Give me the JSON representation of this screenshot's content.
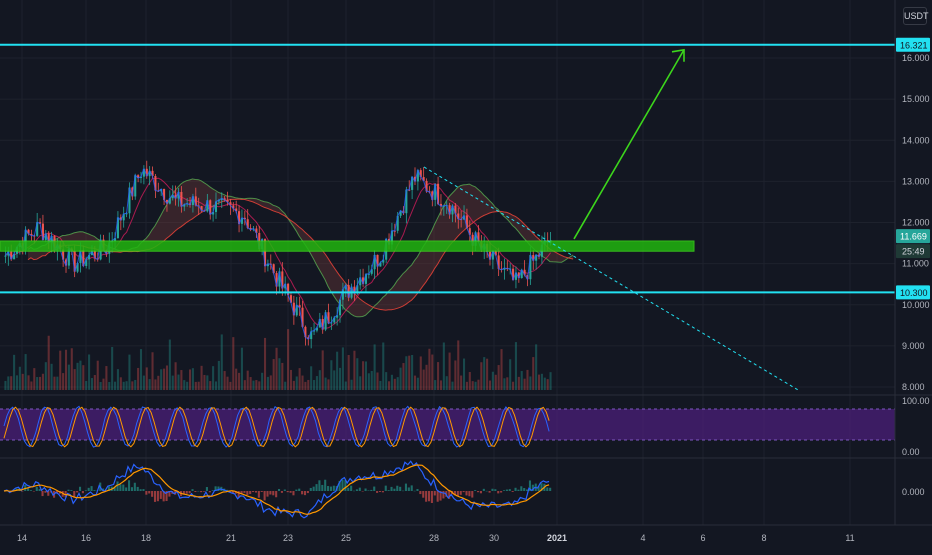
{
  "currency_label": "USDT",
  "colors": {
    "background": "#131722",
    "grid": "#1e222d",
    "up": "#26a69a",
    "down": "#ef5350",
    "support_line": "#22e1f2",
    "target_arrow": "#3cd61c",
    "zone": "#21b50f",
    "rsi_band": "#4b1f7a",
    "macd": "#2962ff",
    "signal": "#ff9800"
  },
  "price_axis": {
    "ticks": [
      "16.000",
      "15.000",
      "14.000",
      "13.000",
      "12.000",
      "11.000",
      "10.000",
      "9.000",
      "8.000"
    ],
    "tick_values": [
      16,
      15,
      14,
      13,
      12,
      11,
      10,
      9,
      8
    ],
    "ylim": [
      7.8,
      16.5
    ]
  },
  "price_labels": {
    "resistance": "16.321",
    "current": "11.669",
    "countdown": "25:49",
    "support": "10.300"
  },
  "rsi_axis": {
    "ticks": [
      "100.00",
      "0.00"
    ]
  },
  "macd_axis": {
    "ticks": [
      "0.000"
    ]
  },
  "time_axis": {
    "labels": [
      "14",
      "16",
      "18",
      "21",
      "23",
      "25",
      "28",
      "30",
      "2021",
      "4",
      "6",
      "8",
      "11"
    ],
    "highlight": "2021"
  },
  "chart_data": {
    "type": "line",
    "title": "",
    "series_description": "price candles (approx. close path), Ichimoku cloud, volume, stochastic RSI, MACD",
    "x": [
      "14",
      "16",
      "18",
      "21",
      "23",
      "25",
      "28",
      "30",
      "2021"
    ],
    "close_path": [
      11.2,
      11.9,
      11.0,
      11.4,
      13.3,
      12.5,
      12.4,
      12.2,
      10.6,
      9.2,
      10.3,
      11.2,
      13.1,
      12.5,
      11.3,
      10.5,
      11.6
    ],
    "horizontal_levels": [
      16.321,
      10.3
    ],
    "zone": [
      11.35,
      11.55
    ],
    "target": 16.321
  }
}
